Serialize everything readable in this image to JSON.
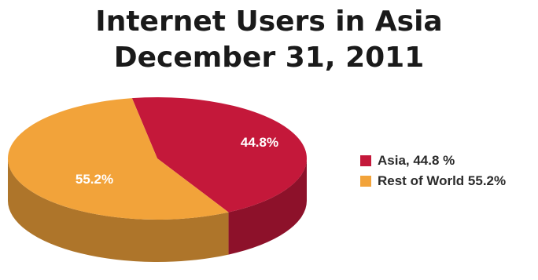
{
  "header": {
    "title_line1": "Internet Users in Asia",
    "title_line2": "December 31,  2011"
  },
  "colors": {
    "asia": "#c4183a",
    "rest": "#f2a33a"
  },
  "chart_data": {
    "type": "pie",
    "title": "Internet Users in Asia December 31,  2011",
    "categories": [
      "Asia",
      "Rest of World"
    ],
    "values": [
      44.8,
      55.2
    ],
    "unit": "%",
    "data_labels": [
      "44.8%",
      "55.2%"
    ],
    "legend": [
      {
        "label": "Asia, 44.8 %"
      },
      {
        "label": "Rest of World 55.2%"
      }
    ],
    "legend_position": "right",
    "style": "3d"
  }
}
